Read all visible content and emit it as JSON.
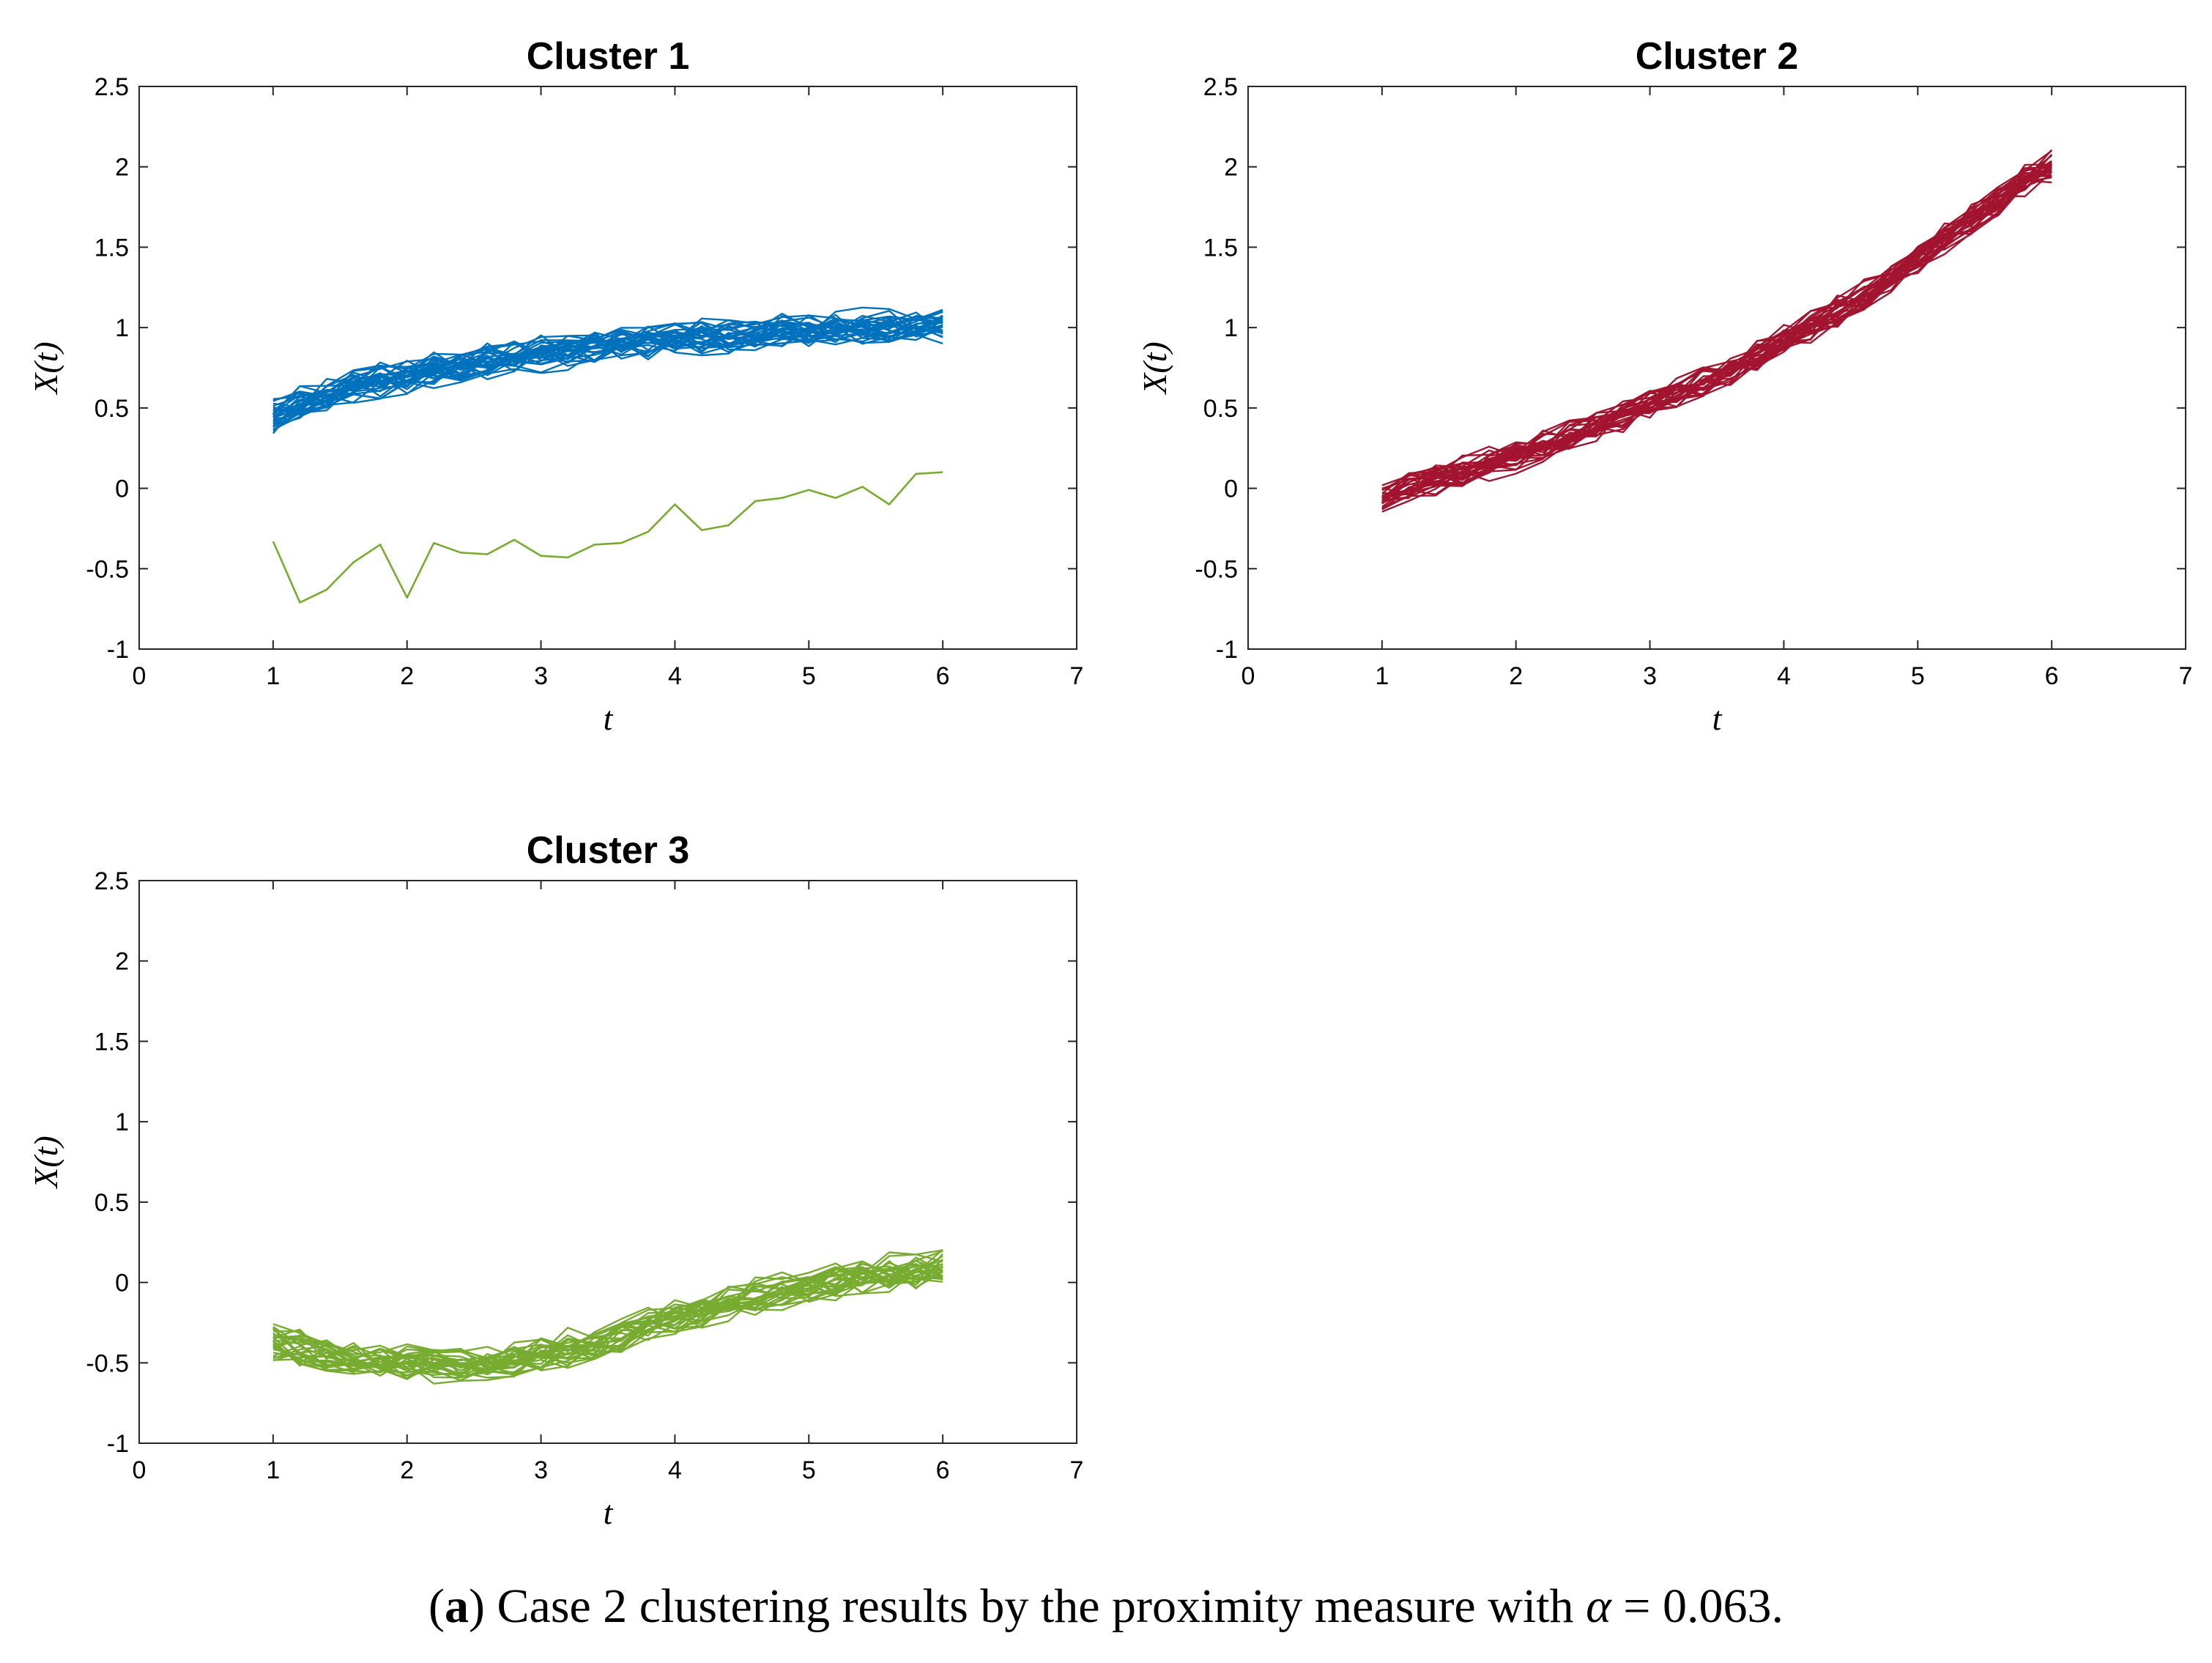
{
  "caption": {
    "open_paren": "(",
    "letter": "a",
    "text_before": ") Case 2 clustering results by the proximity measure with ",
    "alpha_symbol": "α",
    "text_after": " = 0.063."
  },
  "colors": {
    "cluster1": "#0072BD",
    "cluster2": "#A2142F",
    "cluster3": "#77AC30"
  },
  "chart_data": [
    {
      "type": "line",
      "title": "Cluster 1",
      "xlabel": "t",
      "ylabel": "X(t)",
      "xlim": [
        0,
        7
      ],
      "ylim": [
        -1,
        2.5
      ],
      "xticks": [
        "0",
        "1",
        "2",
        "3",
        "4",
        "5",
        "6",
        "7"
      ],
      "yticks": [
        "-1",
        "-0.5",
        "0",
        "0.5",
        "1",
        "1.5",
        "2",
        "2.5"
      ],
      "grid": false,
      "x": [
        1,
        1.2,
        1.4,
        1.6,
        1.8,
        2,
        2.2,
        2.4,
        2.6,
        2.8,
        3,
        3.2,
        3.4,
        3.6,
        3.8,
        4,
        4.2,
        4.4,
        4.6,
        4.8,
        5,
        5.2,
        5.4,
        5.6,
        5.8,
        6
      ],
      "band": {
        "count": 32,
        "color": "#0072BD",
        "mean": [
          0.45,
          0.52,
          0.58,
          0.63,
          0.67,
          0.71,
          0.74,
          0.77,
          0.8,
          0.82,
          0.84,
          0.86,
          0.88,
          0.9,
          0.91,
          0.93,
          0.94,
          0.95,
          0.96,
          0.97,
          0.98,
          0.99,
          1.0,
          1.0,
          1.01,
          1.02
        ],
        "noise": 0.08,
        "seed": 11
      },
      "series": [
        {
          "name": "outlier",
          "color": "#77AC30",
          "values": [
            -0.33,
            -0.71,
            -0.63,
            -0.46,
            -0.35,
            -0.68,
            -0.34,
            -0.4,
            -0.41,
            -0.32,
            -0.42,
            -0.43,
            -0.35,
            -0.34,
            -0.27,
            -0.1,
            -0.26,
            -0.23,
            -0.08,
            -0.06,
            -0.01,
            -0.06,
            0.01,
            -0.1,
            0.09,
            0.1
          ]
        }
      ]
    },
    {
      "type": "line",
      "title": "Cluster 2",
      "xlabel": "t",
      "ylabel": "X(t)",
      "xlim": [
        0,
        7
      ],
      "ylim": [
        -1,
        2.5
      ],
      "xticks": [
        "0",
        "1",
        "2",
        "3",
        "4",
        "5",
        "6",
        "7"
      ],
      "yticks": [
        "-1",
        "-0.5",
        "0",
        "0.5",
        "1",
        "1.5",
        "2",
        "2.5"
      ],
      "grid": false,
      "x": [
        1,
        1.2,
        1.4,
        1.6,
        1.8,
        2,
        2.2,
        2.4,
        2.6,
        2.8,
        3,
        3.2,
        3.4,
        3.6,
        3.8,
        4,
        4.2,
        4.4,
        4.6,
        4.8,
        5,
        5.2,
        5.4,
        5.6,
        5.8,
        6
      ],
      "band": {
        "count": 30,
        "color": "#A2142F",
        "mean": [
          -0.05,
          0.0,
          0.05,
          0.1,
          0.15,
          0.2,
          0.26,
          0.32,
          0.38,
          0.45,
          0.52,
          0.59,
          0.66,
          0.74,
          0.82,
          0.91,
          1.0,
          1.1,
          1.2,
          1.31,
          1.42,
          1.54,
          1.66,
          1.78,
          1.9,
          2.0
        ],
        "noise": 0.07,
        "seed": 23
      },
      "series": []
    },
    {
      "type": "line",
      "title": "Cluster 3",
      "xlabel": "t",
      "ylabel": "X(t)",
      "xlim": [
        0,
        7
      ],
      "ylim": [
        -1,
        2.5
      ],
      "xticks": [
        "0",
        "1",
        "2",
        "3",
        "4",
        "5",
        "6",
        "7"
      ],
      "yticks": [
        "-1",
        "-0.5",
        "0",
        "0.5",
        "1",
        "1.5",
        "2",
        "2.5"
      ],
      "grid": false,
      "x": [
        1,
        1.2,
        1.4,
        1.6,
        1.8,
        2,
        2.2,
        2.4,
        2.6,
        2.8,
        3,
        3.2,
        3.4,
        3.6,
        3.8,
        4,
        4.2,
        4.4,
        4.6,
        4.8,
        5,
        5.2,
        5.4,
        5.6,
        5.8,
        6
      ],
      "band": {
        "count": 30,
        "color": "#77AC30",
        "mean": [
          -0.38,
          -0.42,
          -0.45,
          -0.47,
          -0.49,
          -0.5,
          -0.51,
          -0.51,
          -0.5,
          -0.48,
          -0.45,
          -0.41,
          -0.37,
          -0.32,
          -0.27,
          -0.22,
          -0.17,
          -0.13,
          -0.09,
          -0.05,
          -0.02,
          0.01,
          0.04,
          0.06,
          0.08,
          0.1
        ],
        "noise": 0.08,
        "seed": 37
      },
      "series": []
    }
  ]
}
